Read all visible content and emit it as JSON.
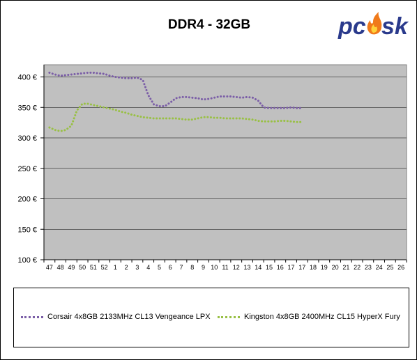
{
  "chart_data": {
    "type": "line",
    "title": "DDR4 - 32GB",
    "categories": [
      "47",
      "48",
      "49",
      "50",
      "51",
      "52",
      "1",
      "2",
      "3",
      "4",
      "5",
      "6",
      "7",
      "8",
      "9",
      "10",
      "11",
      "12",
      "13",
      "14",
      "15",
      "16",
      "17",
      "17",
      "18",
      "19",
      "20",
      "21",
      "22",
      "23",
      "24",
      "25",
      "26"
    ],
    "y_tick_labels": [
      "100 €",
      "150 €",
      "200 €",
      "250 €",
      "300 €",
      "350 €",
      "400 €"
    ],
    "ylim": [
      100,
      420
    ],
    "grid": true,
    "legend_position": "bottom",
    "plot_background": "#c0c0c0",
    "series": [
      {
        "name": "Corsair 4x8GB 2133MHz CL13 Vengeance LPX",
        "color": "#7b5ea7",
        "x": [
          0,
          0.5,
          1,
          1.5,
          2,
          2.5,
          3,
          3.5,
          4,
          4.5,
          5,
          5.5,
          6,
          6.5,
          7,
          7.5,
          8,
          8.5,
          9,
          9.5,
          10,
          10.5,
          11,
          11.5,
          12,
          12.5,
          13,
          13.5,
          14,
          14.5,
          15,
          15.5,
          16,
          16.5,
          17,
          17.5,
          18,
          18.5,
          19,
          19.5,
          20,
          20.5,
          21,
          21.5,
          22,
          22.5,
          23
        ],
        "values": [
          407,
          404,
          402,
          403,
          404,
          405,
          406,
          407,
          407,
          406,
          405,
          402,
          400,
          399,
          398,
          398,
          399,
          395,
          370,
          355,
          352,
          352,
          358,
          365,
          367,
          367,
          366,
          365,
          363,
          364,
          366,
          368,
          368,
          368,
          367,
          366,
          367,
          366,
          361,
          350,
          349,
          349,
          349,
          349,
          350,
          349,
          349
        ]
      },
      {
        "name": "Kingston 4x8GB 2400MHz CL15 HyperX Fury",
        "color": "#99c045",
        "x": [
          0,
          0.5,
          1,
          1.5,
          2,
          2.5,
          3,
          3.5,
          4,
          4.5,
          5,
          5.5,
          6,
          6.5,
          7,
          7.5,
          8,
          8.5,
          9,
          9.5,
          10,
          10.5,
          11,
          11.5,
          12,
          12.5,
          13,
          13.5,
          14,
          14.5,
          15,
          15.5,
          16,
          16.5,
          17,
          17.5,
          18,
          18.5,
          19,
          19.5,
          20,
          20.5,
          21,
          21.5,
          22,
          22.5,
          23
        ],
        "values": [
          317,
          313,
          311,
          313,
          320,
          345,
          356,
          356,
          354,
          352,
          350,
          348,
          346,
          343,
          341,
          338,
          336,
          334,
          333,
          332,
          332,
          332,
          332,
          332,
          331,
          330,
          330,
          332,
          334,
          334,
          333,
          333,
          332,
          332,
          332,
          332,
          331,
          330,
          328,
          327,
          327,
          327,
          328,
          328,
          327,
          326,
          326
        ]
      }
    ]
  },
  "logo": {
    "text": "pc ask",
    "text_color": "#2a3a8c",
    "flame_color": "#f07a1a"
  }
}
